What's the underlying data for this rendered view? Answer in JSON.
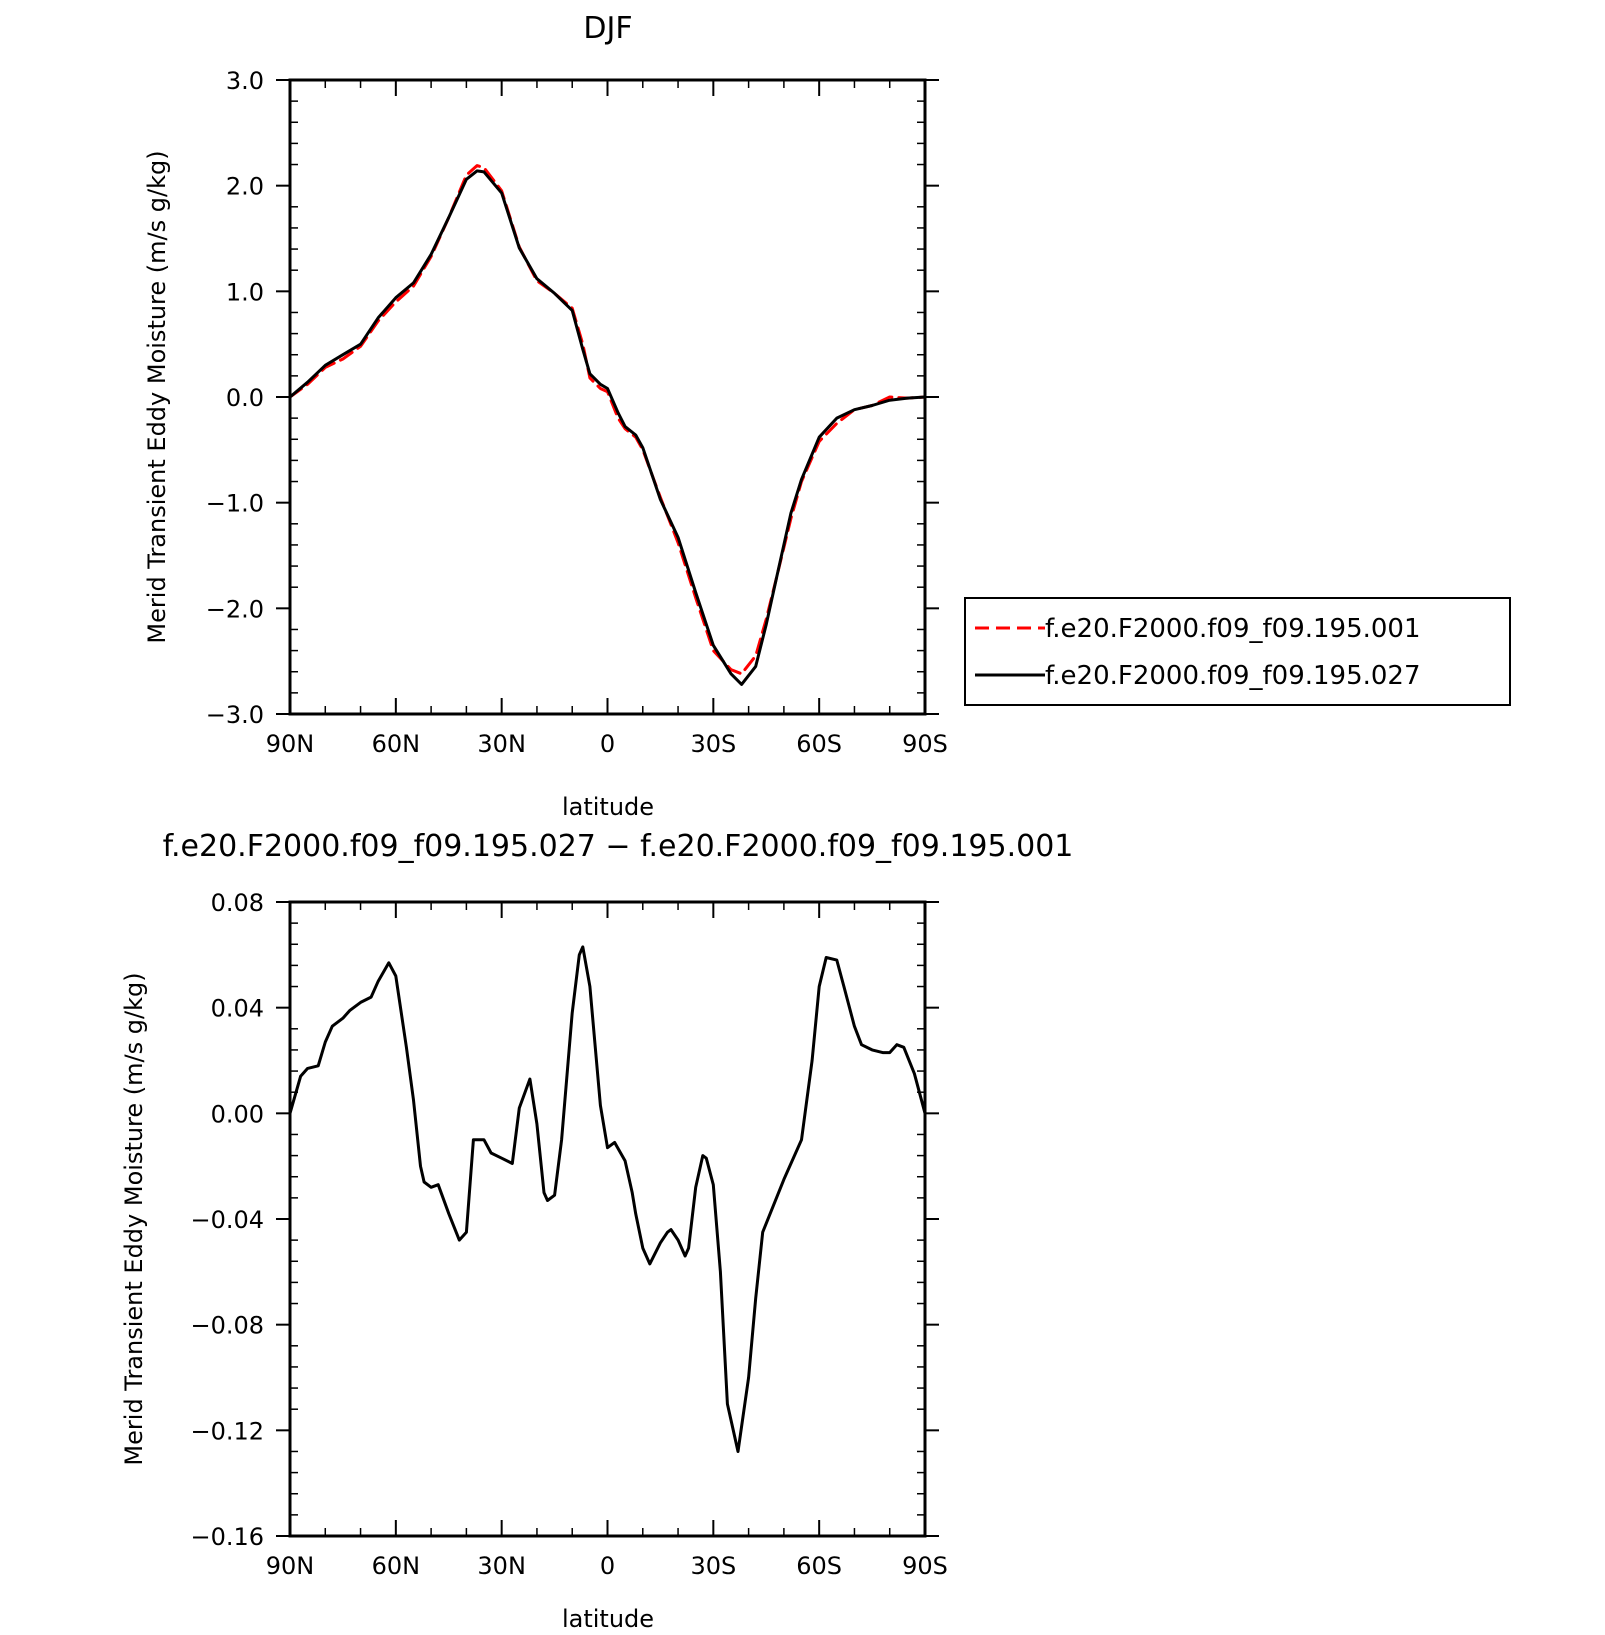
{
  "chart_data": [
    {
      "type": "line",
      "title": "DJF",
      "xlabel": "latitude",
      "ylabel": "Merid Transient Eddy Moisture (m/s g/kg)",
      "xlim": [
        90,
        -90
      ],
      "ylim": [
        -3.0,
        3.0
      ],
      "xticks": [
        90,
        60,
        30,
        0,
        -30,
        -60,
        -90
      ],
      "xtick_labels": [
        "90N",
        "60N",
        "30N",
        "0",
        "30S",
        "60S",
        "90S"
      ],
      "yticks": [
        3.0,
        2.0,
        1.0,
        0.0,
        -1.0,
        -2.0,
        -3.0
      ],
      "ytick_labels": [
        "3.0",
        "2.0",
        "1.0",
        "0.0",
        "−1.0",
        "−2.0",
        "−3.0"
      ],
      "legend_position": "right",
      "x": [
        90,
        85,
        80,
        75,
        70,
        65,
        60,
        55,
        50,
        45,
        40,
        37,
        35,
        30,
        25,
        20,
        15,
        10,
        7,
        5,
        2,
        0,
        -3,
        -5,
        -8,
        -10,
        -15,
        -20,
        -25,
        -30,
        -35,
        -38,
        -42,
        -45,
        -48,
        -52,
        -55,
        -60,
        -65,
        -70,
        -75,
        -80,
        -85,
        -90
      ],
      "series": [
        {
          "name": "f.e20.F2000.f09_f09.195.001",
          "color": "#ff0000",
          "dash": "dashed",
          "values": [
            0.0,
            0.12,
            0.28,
            0.36,
            0.48,
            0.72,
            0.9,
            1.05,
            1.33,
            1.7,
            2.1,
            2.19,
            2.17,
            1.95,
            1.42,
            1.1,
            0.98,
            0.84,
            0.5,
            0.18,
            0.08,
            0.05,
            -0.2,
            -0.3,
            -0.38,
            -0.5,
            -0.95,
            -1.38,
            -1.9,
            -2.4,
            -2.58,
            -2.62,
            -2.45,
            -2.1,
            -1.7,
            -1.15,
            -0.8,
            -0.42,
            -0.25,
            -0.12,
            -0.08,
            0.0,
            -0.01,
            0.0
          ]
        },
        {
          "name": "f.e20.F2000.f09_f09.195.027",
          "color": "#000000",
          "dash": "solid",
          "values": [
            0.0,
            0.14,
            0.3,
            0.4,
            0.5,
            0.75,
            0.94,
            1.08,
            1.35,
            1.7,
            2.06,
            2.14,
            2.13,
            1.93,
            1.41,
            1.12,
            0.98,
            0.82,
            0.45,
            0.22,
            0.12,
            0.08,
            -0.15,
            -0.28,
            -0.36,
            -0.48,
            -0.97,
            -1.33,
            -1.85,
            -2.35,
            -2.62,
            -2.72,
            -2.55,
            -2.15,
            -1.7,
            -1.1,
            -0.78,
            -0.38,
            -0.2,
            -0.12,
            -0.08,
            -0.03,
            -0.01,
            0.0
          ]
        }
      ]
    },
    {
      "type": "line",
      "title": "f.e20.F2000.f09_f09.195.027 − f.e20.F2000.f09_f09.195.001",
      "xlabel": "latitude",
      "ylabel": "Merid Transient Eddy Moisture (m/s g/kg)",
      "xlim": [
        90,
        -90
      ],
      "ylim": [
        -0.16,
        0.08
      ],
      "xticks": [
        90,
        60,
        30,
        0,
        -30,
        -60,
        -90
      ],
      "xtick_labels": [
        "90N",
        "60N",
        "30N",
        "0",
        "30S",
        "60S",
        "90S"
      ],
      "yticks": [
        0.08,
        0.04,
        0.0,
        -0.04,
        -0.08,
        -0.12,
        -0.16
      ],
      "ytick_labels": [
        "0.08",
        "0.04",
        "0.00",
        "−0.04",
        "−0.08",
        "−0.12",
        "−0.16"
      ],
      "x": [
        90,
        87,
        85,
        82,
        80,
        78,
        75,
        73,
        70,
        67,
        65,
        62,
        60,
        57,
        55,
        53,
        52,
        50,
        48,
        45,
        42,
        40,
        38,
        35,
        33,
        30,
        27,
        25,
        22,
        20,
        18,
        17,
        15,
        13,
        10,
        8,
        7,
        5,
        2,
        0,
        -2,
        -5,
        -7,
        -8,
        -10,
        -12,
        -15,
        -17,
        -18,
        -20,
        -22,
        -23,
        -25,
        -27,
        -28,
        -30,
        -32,
        -34,
        -37,
        -40,
        -42,
        -44,
        -47,
        -50,
        -55,
        -58,
        -60,
        -62,
        -65,
        -67,
        -70,
        -72,
        -75,
        -78,
        -80,
        -82,
        -84,
        -87,
        -90
      ],
      "series": [
        {
          "name": "",
          "color": "#000000",
          "dash": "solid",
          "values": [
            0.0,
            0.014,
            0.017,
            0.018,
            0.027,
            0.033,
            0.036,
            0.039,
            0.042,
            0.044,
            0.05,
            0.057,
            0.052,
            0.025,
            0.005,
            -0.02,
            -0.026,
            -0.028,
            -0.027,
            -0.038,
            -0.048,
            -0.045,
            -0.01,
            -0.01,
            -0.015,
            -0.017,
            -0.019,
            0.002,
            0.013,
            -0.004,
            -0.03,
            -0.033,
            -0.031,
            -0.01,
            0.038,
            0.06,
            0.063,
            0.048,
            0.003,
            -0.013,
            -0.011,
            -0.018,
            -0.03,
            -0.038,
            -0.051,
            -0.057,
            -0.049,
            -0.045,
            -0.044,
            -0.048,
            -0.054,
            -0.051,
            -0.028,
            -0.016,
            -0.017,
            -0.027,
            -0.06,
            -0.11,
            -0.128,
            -0.1,
            -0.07,
            -0.045,
            -0.035,
            -0.025,
            -0.01,
            0.02,
            0.048,
            0.059,
            0.058,
            0.048,
            0.033,
            0.026,
            0.024,
            0.023,
            0.023,
            0.026,
            0.025,
            0.015,
            0.0
          ]
        }
      ]
    }
  ]
}
